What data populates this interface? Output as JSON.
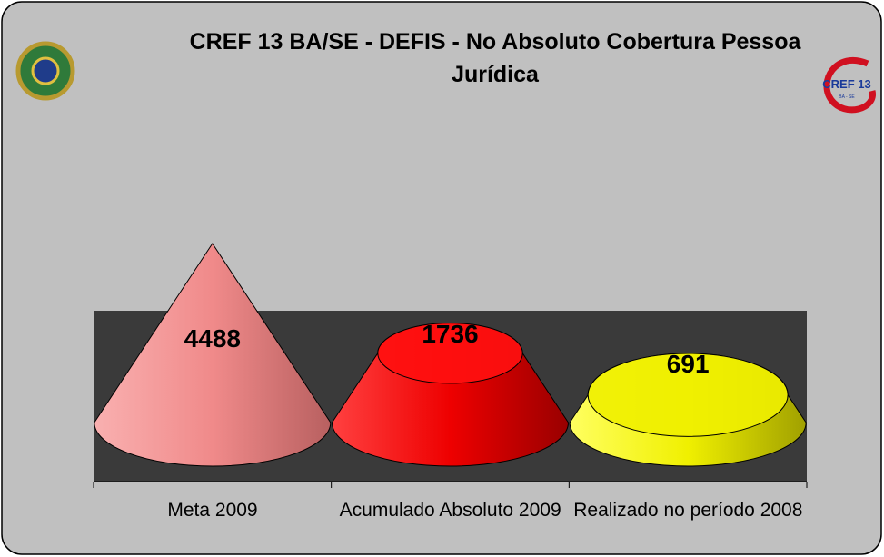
{
  "chart_data": {
    "type": "cone",
    "title": "CREF 13 BA/SE - DEFIS - No Absoluto Cobertura Pessoa Jurídica",
    "logo_text": "CREF 13",
    "logo_subtext": "BA - SE",
    "categories": [
      "Meta 2009",
      "Acumulado Absoluto 2009",
      "Realizado no período 2008"
    ],
    "values": [
      4488,
      1736,
      691
    ],
    "colors": [
      "#f08a8a",
      "#ff1010",
      "#f0f000"
    ]
  }
}
